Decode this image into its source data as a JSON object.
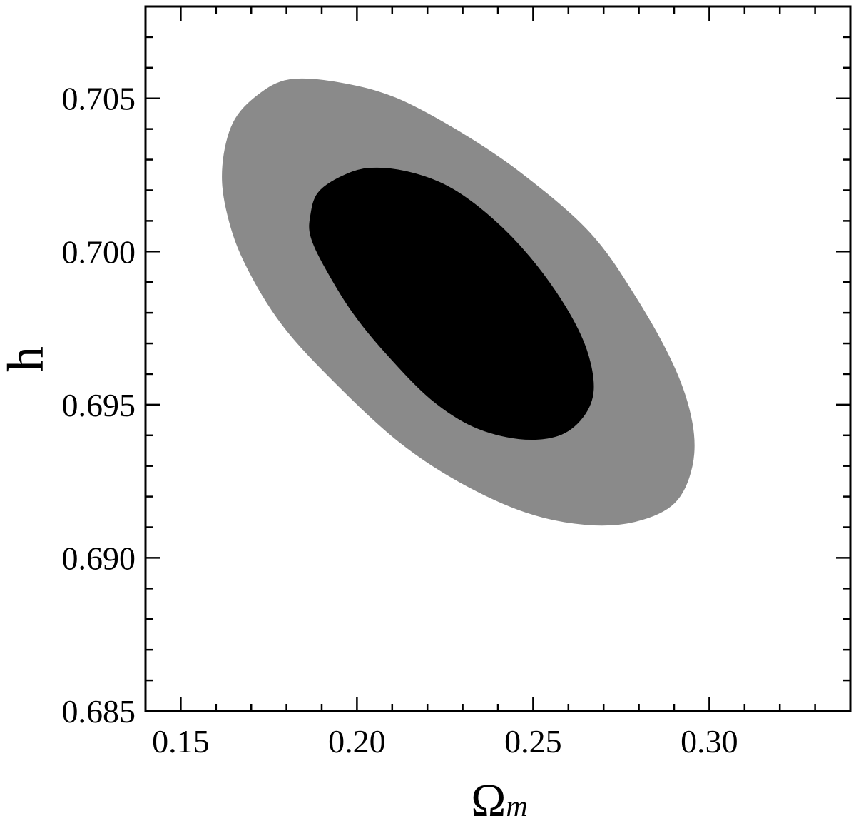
{
  "chart_data": {
    "type": "contour",
    "xlabel": "Ω",
    "xlabel_sub": "m",
    "ylabel": "h",
    "xlim": [
      0.14,
      0.34
    ],
    "ylim": [
      0.685,
      0.708
    ],
    "x_ticks": [
      {
        "value": 0.15,
        "label": "0.15"
      },
      {
        "value": 0.2,
        "label": "0.20"
      },
      {
        "value": 0.25,
        "label": "0.25"
      },
      {
        "value": 0.3,
        "label": "0.30"
      }
    ],
    "y_ticks": [
      {
        "value": 0.685,
        "label": "0.685"
      },
      {
        "value": 0.69,
        "label": "0.690"
      },
      {
        "value": 0.695,
        "label": "0.695"
      },
      {
        "value": 0.7,
        "label": "0.700"
      },
      {
        "value": 0.705,
        "label": "0.705"
      }
    ],
    "x_minor_step": 0.01,
    "y_minor_step": 0.001,
    "grid": false,
    "legend": "none",
    "contours": [
      {
        "level": "outer",
        "color": "#8a8a8a",
        "center": {
          "x": 0.2282,
          "y": 0.69835
        },
        "points": [
          {
            "x": 0.162,
            "y": 0.7028
          },
          {
            "x": 0.165,
            "y": 0.7042
          },
          {
            "x": 0.172,
            "y": 0.7051
          },
          {
            "x": 0.181,
            "y": 0.7056
          },
          {
            "x": 0.195,
            "y": 0.7055
          },
          {
            "x": 0.211,
            "y": 0.705
          },
          {
            "x": 0.229,
            "y": 0.7039
          },
          {
            "x": 0.247,
            "y": 0.7025
          },
          {
            "x": 0.266,
            "y": 0.7006
          },
          {
            "x": 0.279,
            "y": 0.6985
          },
          {
            "x": 0.29,
            "y": 0.6962
          },
          {
            "x": 0.295,
            "y": 0.6944
          },
          {
            "x": 0.295,
            "y": 0.693
          },
          {
            "x": 0.29,
            "y": 0.6918
          },
          {
            "x": 0.279,
            "y": 0.6912
          },
          {
            "x": 0.265,
            "y": 0.6911
          },
          {
            "x": 0.248,
            "y": 0.6915
          },
          {
            "x": 0.229,
            "y": 0.6925
          },
          {
            "x": 0.212,
            "y": 0.6938
          },
          {
            "x": 0.195,
            "y": 0.6956
          },
          {
            "x": 0.179,
            "y": 0.6976
          },
          {
            "x": 0.168,
            "y": 0.6997
          },
          {
            "x": 0.163,
            "y": 0.7014
          }
        ]
      },
      {
        "level": "inner",
        "color": "#000000",
        "center": {
          "x": 0.2264,
          "y": 0.6983
        },
        "points": [
          {
            "x": 0.187,
            "y": 0.7012
          },
          {
            "x": 0.189,
            "y": 0.7019
          },
          {
            "x": 0.195,
            "y": 0.7024
          },
          {
            "x": 0.203,
            "y": 0.7027
          },
          {
            "x": 0.214,
            "y": 0.7026
          },
          {
            "x": 0.226,
            "y": 0.7021
          },
          {
            "x": 0.238,
            "y": 0.7011
          },
          {
            "x": 0.249,
            "y": 0.6998
          },
          {
            "x": 0.259,
            "y": 0.6982
          },
          {
            "x": 0.265,
            "y": 0.6968
          },
          {
            "x": 0.267,
            "y": 0.6955
          },
          {
            "x": 0.264,
            "y": 0.6946
          },
          {
            "x": 0.257,
            "y": 0.694
          },
          {
            "x": 0.246,
            "y": 0.6939
          },
          {
            "x": 0.233,
            "y": 0.6943
          },
          {
            "x": 0.221,
            "y": 0.6952
          },
          {
            "x": 0.209,
            "y": 0.6966
          },
          {
            "x": 0.199,
            "y": 0.698
          },
          {
            "x": 0.191,
            "y": 0.6995
          },
          {
            "x": 0.187,
            "y": 0.7005
          }
        ]
      }
    ]
  }
}
